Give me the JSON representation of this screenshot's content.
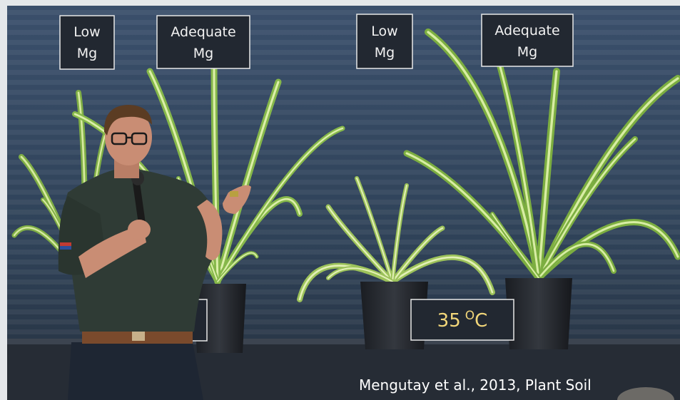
{
  "labels": [
    {
      "line1": "Low",
      "line2": "Mg"
    },
    {
      "line1": "Adequate",
      "line2": "Mg"
    },
    {
      "line1": "Low",
      "line2": "Mg"
    },
    {
      "line1": "Adequate",
      "line2": "Mg"
    }
  ],
  "temperature": {
    "value": "35",
    "unit_sup": "O",
    "unit": "C"
  },
  "citation": "Mengutay et al., 2013, Plant Soil"
}
